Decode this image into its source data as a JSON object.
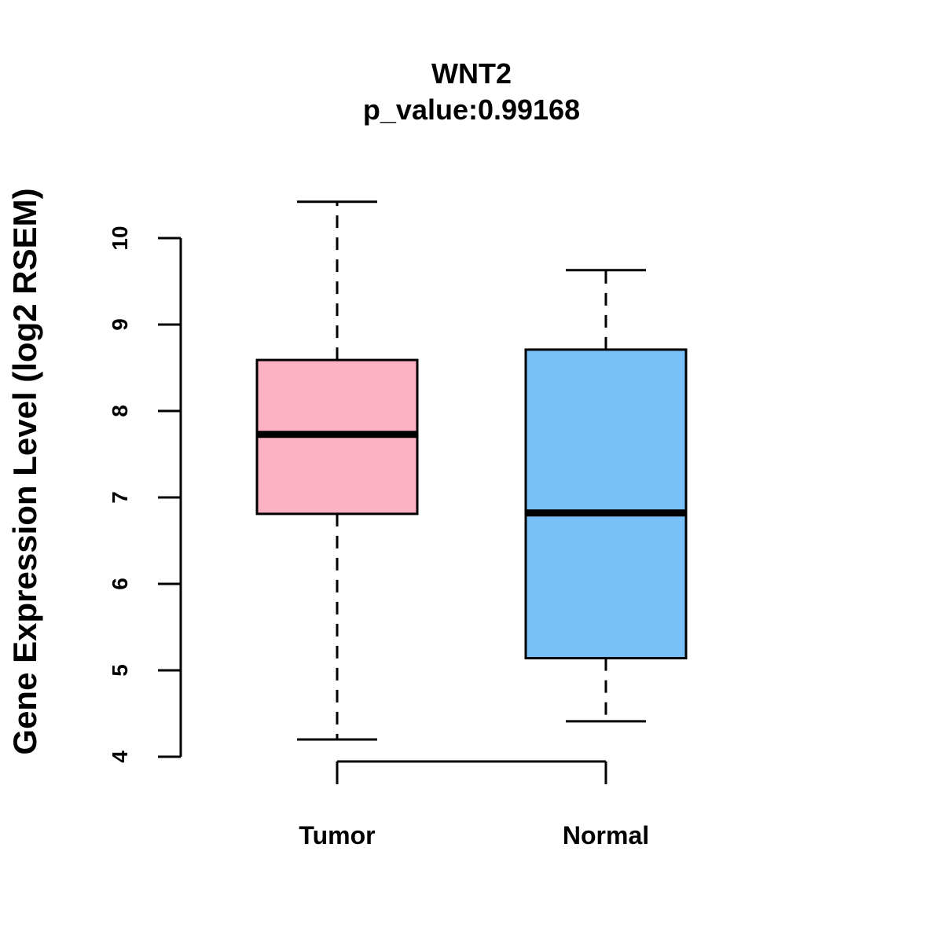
{
  "chart_data": {
    "type": "box",
    "title": "WNT2",
    "subtitle": "p_value:0.99168",
    "xlabel": "",
    "ylabel": "Gene Expression Level (log2 RSEM)",
    "ylim": [
      4,
      10
    ],
    "y_ticks": [
      "4",
      "5",
      "6",
      "7",
      "8",
      "9",
      "10"
    ],
    "grid": false,
    "categories": [
      "Tumor",
      "Normal"
    ],
    "boxes": [
      {
        "category": "Tumor",
        "min": 4.2,
        "q1": 6.81,
        "median": 7.73,
        "q3": 8.59,
        "max": 10.42,
        "color": "#FDB2C4"
      },
      {
        "category": "Normal",
        "min": 4.41,
        "q1": 5.14,
        "median": 6.82,
        "q3": 8.71,
        "max": 9.63,
        "color": "#78C1F8"
      }
    ]
  }
}
